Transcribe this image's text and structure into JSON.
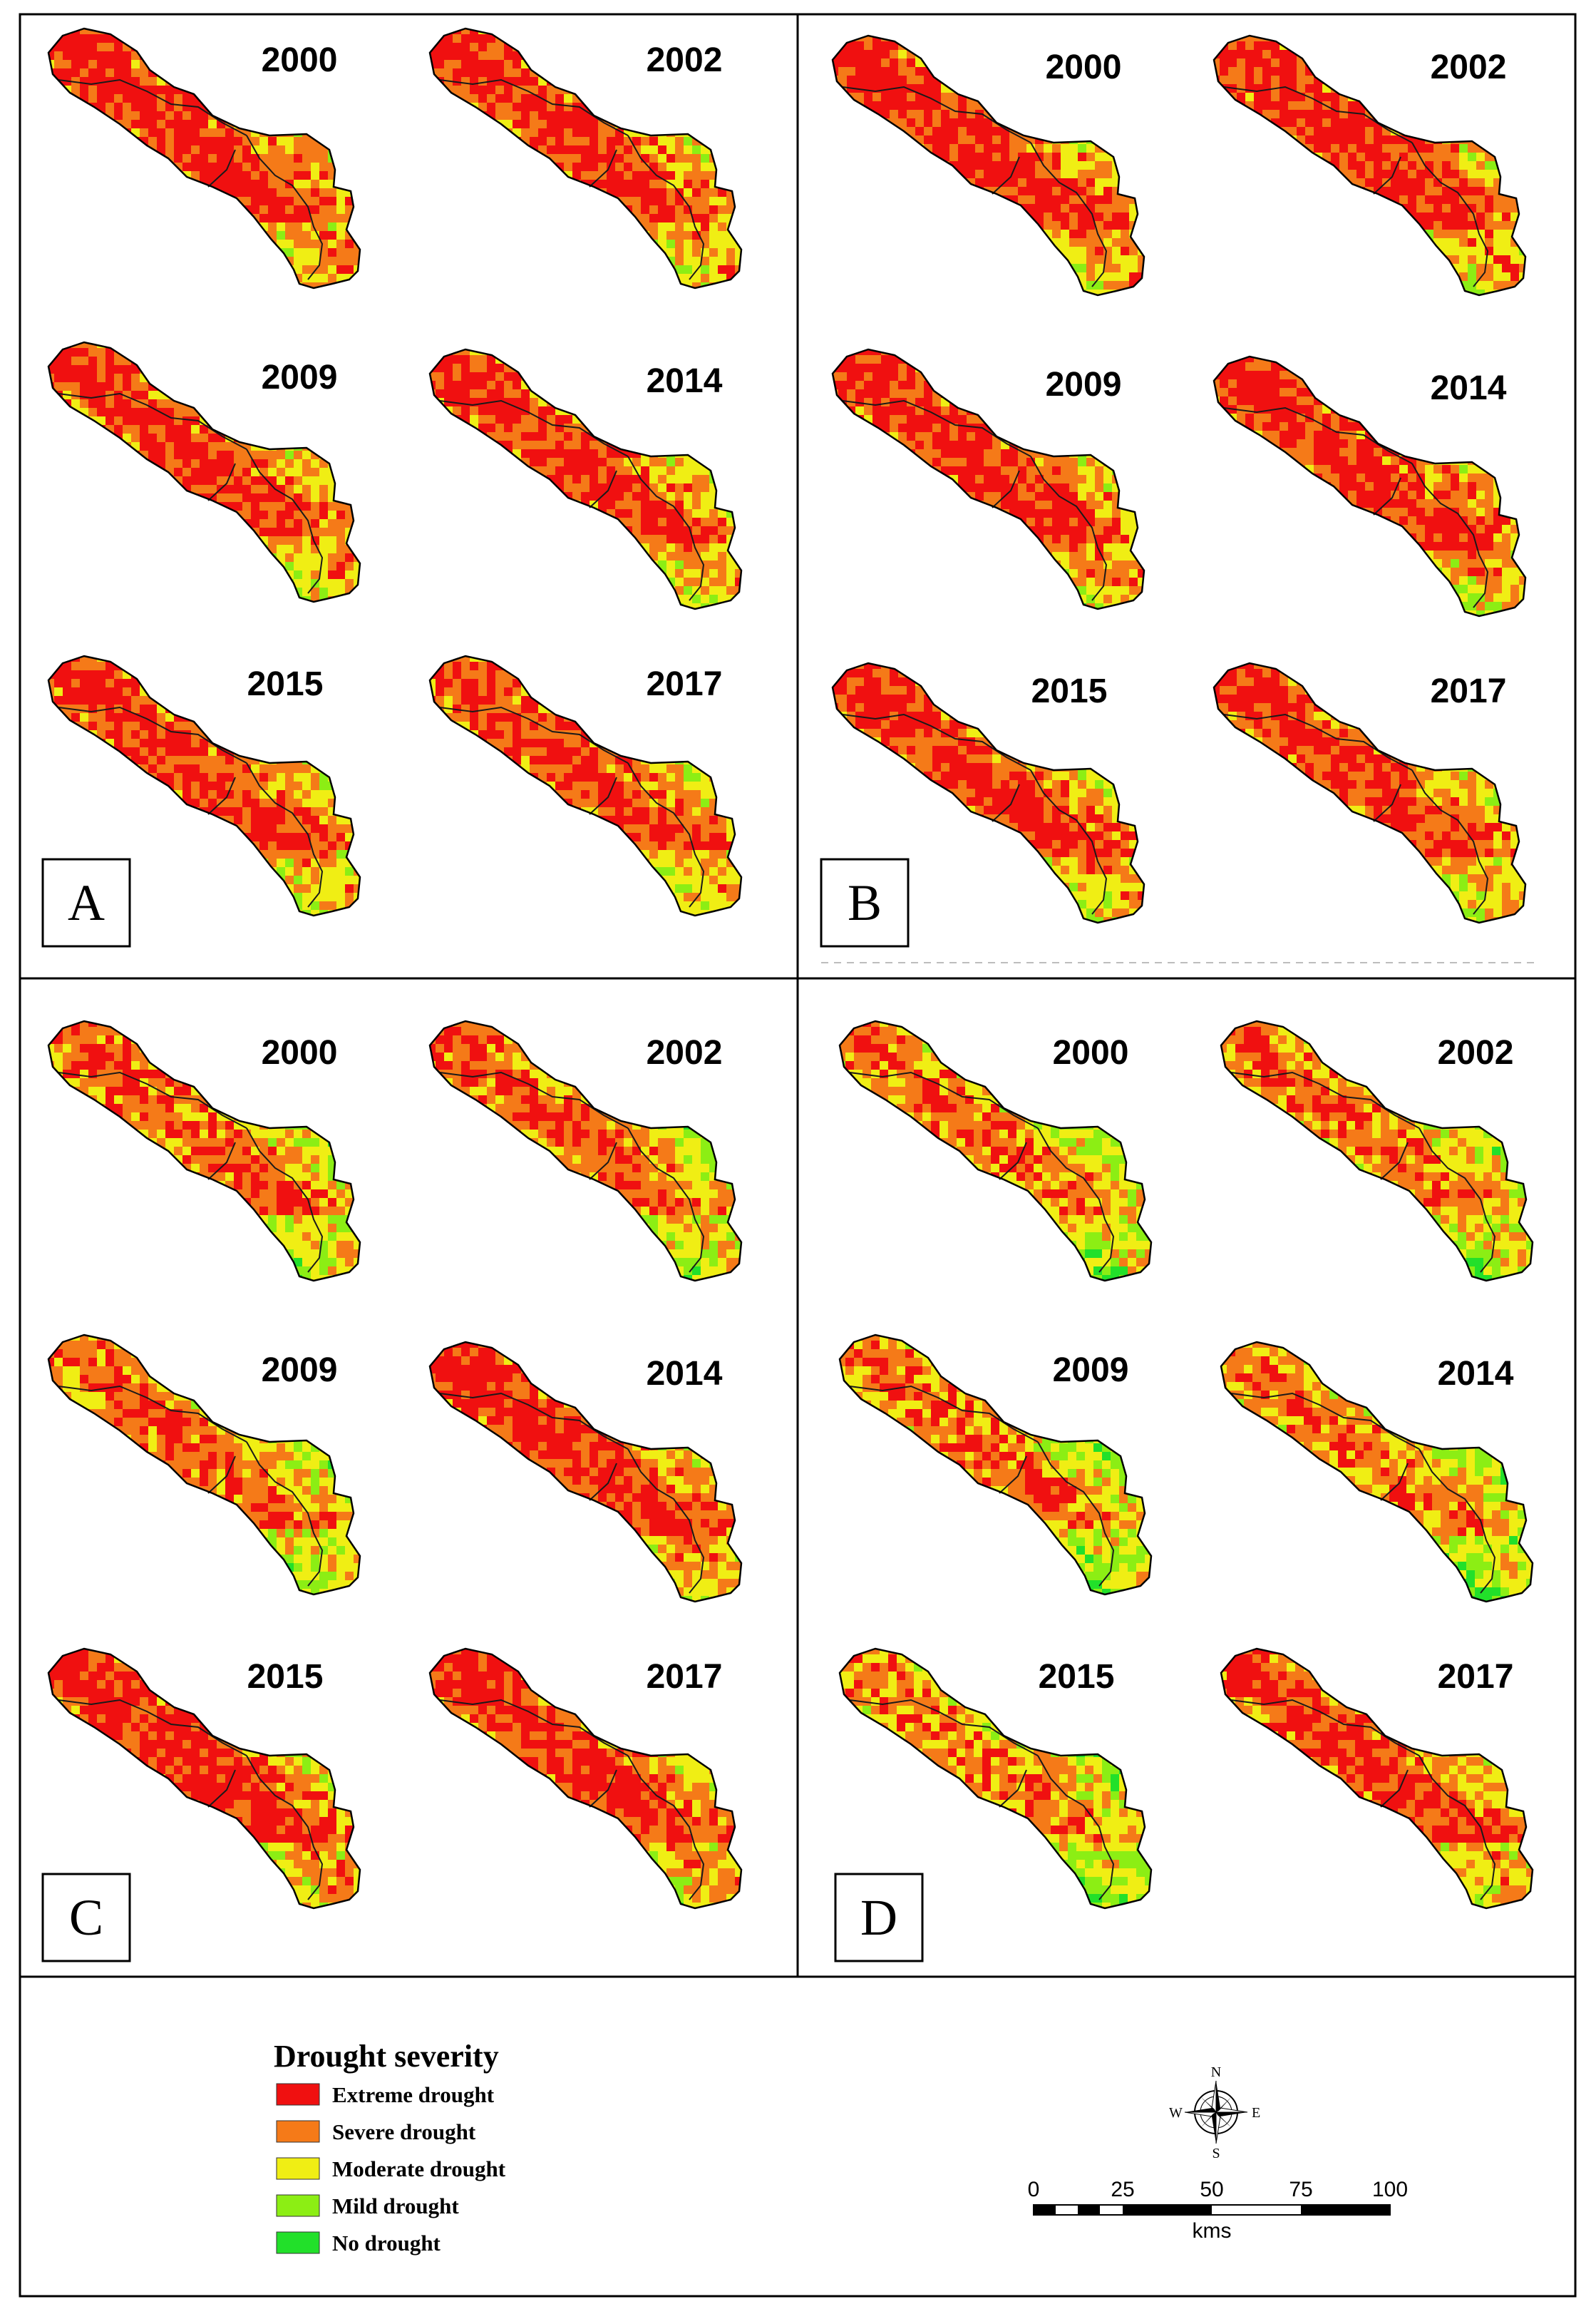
{
  "panels": [
    {
      "letter": "A",
      "maps": [
        {
          "year": "2000"
        },
        {
          "year": "2002"
        },
        {
          "year": "2009"
        },
        {
          "year": "2014"
        },
        {
          "year": "2015"
        },
        {
          "year": "2017"
        }
      ]
    },
    {
      "letter": "B",
      "maps": [
        {
          "year": "2000"
        },
        {
          "year": "2002"
        },
        {
          "year": "2009"
        },
        {
          "year": "2014"
        },
        {
          "year": "2015"
        },
        {
          "year": "2017"
        }
      ]
    },
    {
      "letter": "C",
      "maps": [
        {
          "year": "2000"
        },
        {
          "year": "2002"
        },
        {
          "year": "2009"
        },
        {
          "year": "2014"
        },
        {
          "year": "2015"
        },
        {
          "year": "2017"
        }
      ]
    },
    {
      "letter": "D",
      "maps": [
        {
          "year": "2000"
        },
        {
          "year": "2002"
        },
        {
          "year": "2009"
        },
        {
          "year": "2014"
        },
        {
          "year": "2015"
        },
        {
          "year": "2017"
        }
      ]
    }
  ],
  "legend": {
    "title": "Drought severity",
    "classes": [
      {
        "label": "Extreme drought",
        "color": "#f01010"
      },
      {
        "label": "Severe drought",
        "color": "#f57a18"
      },
      {
        "label": "Moderate drought",
        "color": "#f0ee14"
      },
      {
        "label": "Mild drought",
        "color": "#8cee14"
      },
      {
        "label": "No drought",
        "color": "#22e02a"
      }
    ]
  },
  "compass": {
    "n": "N",
    "s": "S",
    "e": "E",
    "w": "W"
  },
  "scale_bar": {
    "ticks": [
      "0",
      "25",
      "50",
      "75",
      "100"
    ],
    "unit": "kms"
  }
}
